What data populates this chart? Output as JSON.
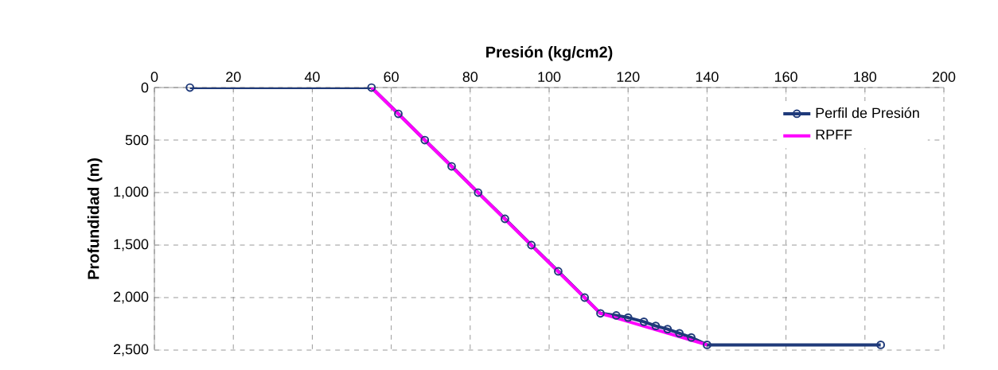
{
  "chart_data": {
    "type": "line",
    "xlabel": "Presión (kg/cm2)",
    "ylabel": "Profundidad (m)",
    "xlim": [
      0,
      200
    ],
    "xticks": [
      0,
      20,
      40,
      60,
      80,
      100,
      120,
      140,
      160,
      180,
      200
    ],
    "ylim": [
      2500,
      0
    ],
    "yticks": [
      0,
      500,
      {
        "value": 1000,
        "label": "1,000"
      },
      {
        "value": 1500,
        "label": "1,500"
      },
      {
        "value": 2000,
        "label": "2,000"
      },
      {
        "value": 2500,
        "label": "2,500"
      }
    ],
    "grid": true,
    "legend": "top right",
    "series": [
      {
        "name": "Perfil de Presión",
        "color": "#1f3a7a",
        "marker": "circle",
        "x": [
          9,
          55,
          61.8,
          68.5,
          75.3,
          82,
          88.8,
          95.5,
          102.3,
          109,
          113,
          117,
          120,
          124,
          127,
          130,
          133,
          136,
          140,
          184
        ],
        "values": [
          0,
          0,
          250,
          500,
          750,
          1000,
          1250,
          1500,
          1750,
          2000,
          2150,
          2170,
          2190,
          2230,
          2270,
          2300,
          2340,
          2380,
          2450,
          2450
        ]
      },
      {
        "name": "RPFF",
        "color": "#ff00ff",
        "marker": "none",
        "x": [
          55,
          113,
          140
        ],
        "values": [
          0,
          2150,
          2450
        ]
      }
    ]
  }
}
